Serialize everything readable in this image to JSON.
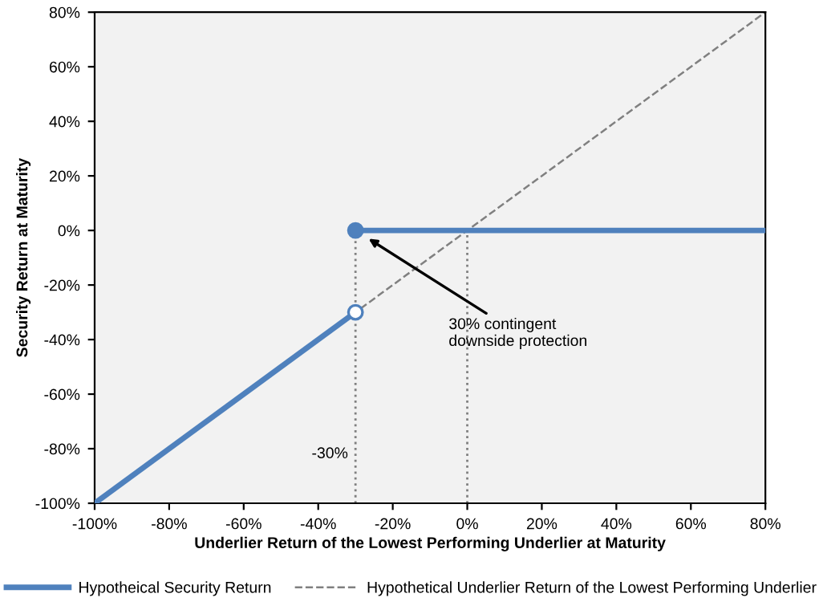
{
  "chart_data": {
    "type": "line",
    "xlabel": "Underlier Return of the Lowest Performing Underlier at Maturity",
    "ylabel": "Security Return at Maturity",
    "series": [
      {
        "name": "Hypotheical Security Return",
        "color": "#4f81bd",
        "x": [
          -100,
          -30
        ],
        "values": [
          -100,
          -30
        ],
        "line_style": "solid",
        "marker": "none"
      },
      {
        "color": "#4f81bd",
        "x": [
          -30,
          80
        ],
        "values": [
          0,
          0
        ],
        "line_style": "solid",
        "marker": "none"
      },
      {
        "name": "Hypothetical Underlier Return of the Lowest Performing Underlier",
        "color": "#808080",
        "x": [
          -100,
          80
        ],
        "values": [
          -100,
          80
        ],
        "line_style": "dashed",
        "marker": "none"
      },
      {
        "type": "scatter",
        "color": "#4f81bd",
        "x": [
          -30
        ],
        "values": [
          0
        ],
        "marker": "circle"
      },
      {
        "type": "scatter",
        "color": "#ffffff",
        "x": [
          -30
        ],
        "values": [
          -30
        ],
        "marker": "circle"
      }
    ],
    "ref_lines": [
      {
        "axis": "x",
        "value": -30,
        "label": "-30%",
        "color": "#808080",
        "line_style": "dotted"
      },
      {
        "axis": "x",
        "value": 0,
        "color": "#808080",
        "line_style": "dotted"
      }
    ],
    "annotations": [
      "30% contingent\ndownside protection"
    ],
    "xlim": [
      -100,
      80
    ],
    "ylim": [
      -100,
      80
    ],
    "xticks": [
      {
        "value": -100,
        "label": "-100%"
      },
      {
        "value": -80,
        "label": "-80%"
      },
      {
        "value": -60,
        "label": "-60%"
      },
      {
        "value": -40,
        "label": "-40%"
      },
      {
        "value": -20,
        "label": "-20%"
      },
      {
        "value": 0,
        "label": "0%"
      },
      {
        "value": 20,
        "label": "20%"
      },
      {
        "value": 40,
        "label": "40%"
      },
      {
        "value": 60,
        "label": "60%"
      },
      {
        "value": 80,
        "label": "80%"
      }
    ],
    "yticks": [
      {
        "value": -100,
        "label": "-100%"
      },
      {
        "value": -80,
        "label": "-80%"
      },
      {
        "value": -60,
        "label": "-60%"
      },
      {
        "value": -40,
        "label": "-40%"
      },
      {
        "value": -20,
        "label": "-20%"
      },
      {
        "value": 0,
        "label": "0%"
      },
      {
        "value": 20,
        "label": "20%"
      },
      {
        "value": 40,
        "label": "40%"
      },
      {
        "value": 60,
        "label": "60%"
      },
      {
        "value": 80,
        "label": "80%"
      }
    ],
    "grid": false,
    "legend": "bottom"
  }
}
